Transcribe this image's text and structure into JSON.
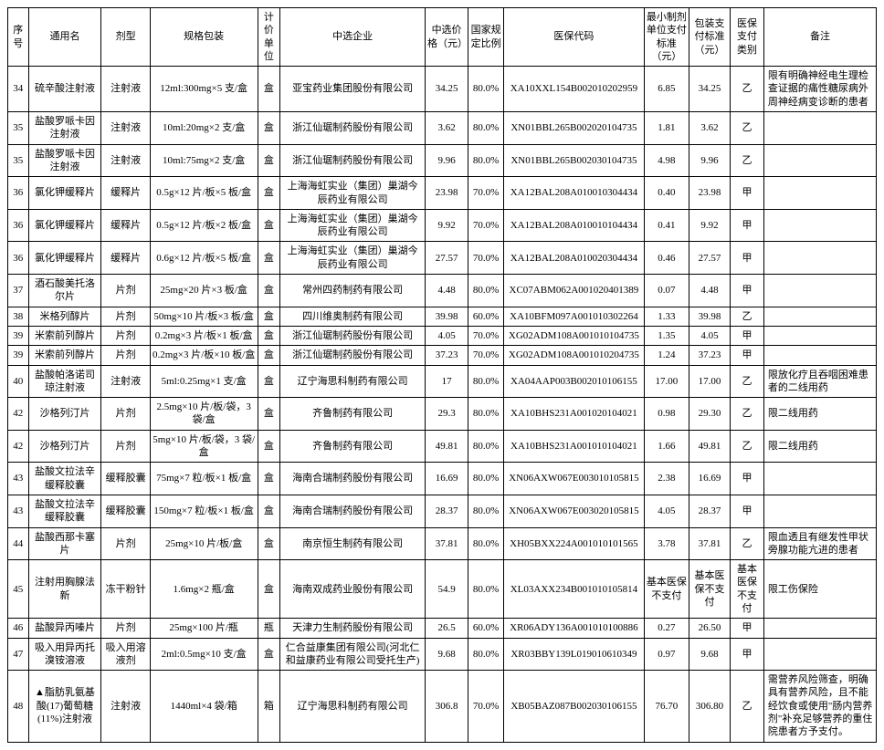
{
  "columns": [
    "序号",
    "通用名",
    "剂型",
    "规格包装",
    "计价单位",
    "中选企业",
    "中选价格（元）",
    "国家规定比例",
    "医保代码",
    "最小制剂单位支付标准（元）",
    "包装支付标准（元）",
    "医保支付类别",
    "备注"
  ],
  "rows": [
    [
      "34",
      "硫辛酸注射液",
      "注射液",
      "12ml:300mg×5 支/盒",
      "盒",
      "亚宝药业集团股份有限公司",
      "34.25",
      "80.0%",
      "XA10XXL154B002010202959",
      "6.85",
      "34.25",
      "乙",
      "限有明确神经电生理检查证据的痛性糖尿病外周神经病变诊断的患者"
    ],
    [
      "35",
      "盐酸罗哌卡因注射液",
      "注射液",
      "10ml:20mg×2 支/盒",
      "盒",
      "浙江仙琚制药股份有限公司",
      "3.62",
      "80.0%",
      "XN01BBL265B002020104735",
      "1.81",
      "3.62",
      "乙",
      ""
    ],
    [
      "35",
      "盐酸罗哌卡因注射液",
      "注射液",
      "10ml:75mg×2 支/盒",
      "盒",
      "浙江仙琚制药股份有限公司",
      "9.96",
      "80.0%",
      "XN01BBL265B002030104735",
      "4.98",
      "9.96",
      "乙",
      ""
    ],
    [
      "36",
      "氯化钾缓释片",
      "缓释片",
      "0.5g×12 片/板×5 板/盒",
      "盒",
      "上海海虹实业（集团）巢湖今辰药业有限公司",
      "23.98",
      "70.0%",
      "XA12BAL208A010010304434",
      "0.40",
      "23.98",
      "甲",
      ""
    ],
    [
      "36",
      "氯化钾缓释片",
      "缓释片",
      "0.5g×12 片/板×2 板/盒",
      "盒",
      "上海海虹实业（集团）巢湖今辰药业有限公司",
      "9.92",
      "70.0%",
      "XA12BAL208A010010104434",
      "0.41",
      "9.92",
      "甲",
      ""
    ],
    [
      "36",
      "氯化钾缓释片",
      "缓释片",
      "0.6g×12 片/板×5 板/盒",
      "盒",
      "上海海虹实业（集团）巢湖今辰药业有限公司",
      "27.57",
      "70.0%",
      "XA12BAL208A010020304434",
      "0.46",
      "27.57",
      "甲",
      ""
    ],
    [
      "37",
      "酒石酸美托洛尔片",
      "片剂",
      "25mg×20 片×3 板/盒",
      "盒",
      "常州四药制药有限公司",
      "4.48",
      "80.0%",
      "XC07ABM062A001020401389",
      "0.07",
      "4.48",
      "甲",
      ""
    ],
    [
      "38",
      "米格列醇片",
      "片剂",
      "50mg×10 片/板×3 板/盒",
      "盒",
      "四川维奥制药有限公司",
      "39.98",
      "60.0%",
      "XA10BFM097A001010302264",
      "1.33",
      "39.98",
      "乙",
      ""
    ],
    [
      "39",
      "米索前列醇片",
      "片剂",
      "0.2mg×3 片/板×1 板/盒",
      "盒",
      "浙江仙琚制药股份有限公司",
      "4.05",
      "70.0%",
      "XG02ADM108A001010104735",
      "1.35",
      "4.05",
      "甲",
      ""
    ],
    [
      "39",
      "米索前列醇片",
      "片剂",
      "0.2mg×3 片/板×10 板/盒",
      "盒",
      "浙江仙琚制药股份有限公司",
      "37.23",
      "70.0%",
      "XG02ADM108A001010204735",
      "1.24",
      "37.23",
      "甲",
      ""
    ],
    [
      "40",
      "盐酸帕洛诺司琼注射液",
      "注射液",
      "5ml:0.25mg×1 支/盒",
      "盒",
      "辽宁海思科制药有限公司",
      "17",
      "80.0%",
      "XA04AAP003B002010106155",
      "17.00",
      "17.00",
      "乙",
      "限放化疗且吞咽困难患者的二线用药"
    ],
    [
      "42",
      "沙格列汀片",
      "片剂",
      "2.5mg×10 片/板/袋，3 袋/盒",
      "盒",
      "齐鲁制药有限公司",
      "29.3",
      "80.0%",
      "XA10BHS231A001020104021",
      "0.98",
      "29.30",
      "乙",
      "限二线用药"
    ],
    [
      "42",
      "沙格列汀片",
      "片剂",
      "5mg×10 片/板/袋，3 袋/盒",
      "盒",
      "齐鲁制药有限公司",
      "49.81",
      "80.0%",
      "XA10BHS231A001010104021",
      "1.66",
      "49.81",
      "乙",
      "限二线用药"
    ],
    [
      "43",
      "盐酸文拉法辛缓释胶囊",
      "缓释胶囊",
      "75mg×7 粒/板×1 板/盒",
      "盒",
      "海南合瑞制药股份有限公司",
      "16.69",
      "80.0%",
      "XN06AXW067E003010105815",
      "2.38",
      "16.69",
      "甲",
      ""
    ],
    [
      "43",
      "盐酸文拉法辛缓释胶囊",
      "缓释胶囊",
      "150mg×7 粒/板×1 板/盒",
      "盒",
      "海南合瑞制药股份有限公司",
      "28.37",
      "80.0%",
      "XN06AXW067E003020105815",
      "4.05",
      "28.37",
      "甲",
      ""
    ],
    [
      "44",
      "盐酸西那卡塞片",
      "片剂",
      "25mg×10 片/板/盒",
      "盒",
      "南京恒生制药有限公司",
      "37.81",
      "80.0%",
      "XH05BXX224A001010101565",
      "3.78",
      "37.81",
      "乙",
      "限血透且有继发性甲状旁腺功能亢进的患者"
    ],
    [
      "45",
      "注射用胸腺法新",
      "冻干粉针",
      "1.6mg×2 瓶/盒",
      "盒",
      "海南双成药业股份有限公司",
      "54.9",
      "80.0%",
      "XL03AXX234B001010105814",
      "基本医保不支付",
      "基本医保不支付",
      "基本医保不支付",
      "限工伤保险"
    ],
    [
      "46",
      "盐酸异丙嗪片",
      "片剂",
      "25mg×100 片/瓶",
      "瓶",
      "天津力生制药股份有限公司",
      "26.5",
      "60.0%",
      "XR06ADY136A001010100886",
      "0.27",
      "26.50",
      "甲",
      ""
    ],
    [
      "47",
      "吸入用异丙托溴铵溶液",
      "吸入用溶液剂",
      "2ml:0.5mg×10 支/盒",
      "盒",
      "仁合益康集团有限公司(河北仁和益康药业有限公司受托生产)",
      "9.68",
      "80.0%",
      "XR03BBY139L019010610349",
      "0.97",
      "9.68",
      "甲",
      ""
    ],
    [
      "48",
      "▲脂肪乳氨基酸(17)葡萄糖(11%)注射液",
      "注射液",
      "1440ml×4 袋/箱",
      "箱",
      "辽宁海思科制药有限公司",
      "306.8",
      "70.0%",
      "XB05BAZ087B002030106155",
      "76.70",
      "306.80",
      "乙",
      "需营养风险筛查，明确具有营养风险，且不能经饮食或使用\"肠内营养剂\"补充足够营养的重住院患者方予支付。"
    ]
  ]
}
